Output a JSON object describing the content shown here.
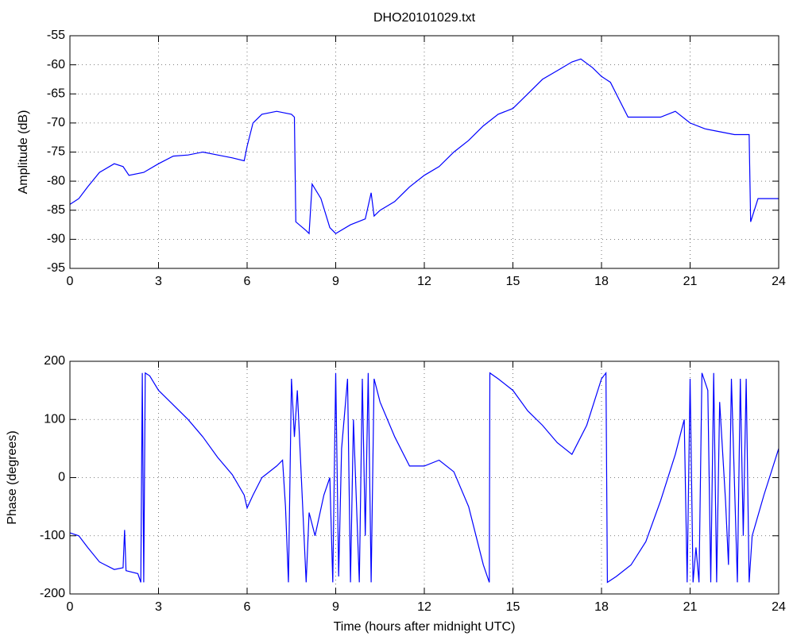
{
  "chart_data": [
    {
      "type": "line",
      "title": "DHO20101029.txt",
      "ylabel": "Amplitude (dB)",
      "x": [
        0,
        0.3,
        0.6,
        1,
        1.5,
        1.8,
        2,
        2.5,
        3,
        3.5,
        4,
        4.5,
        5,
        5.5,
        5.9,
        6,
        6.2,
        6.5,
        7,
        7.5,
        7.6,
        7.65,
        8,
        8.1,
        8.2,
        8.5,
        8.8,
        9,
        9.5,
        10,
        10.2,
        10.3,
        10.5,
        11,
        11.5,
        12,
        12.5,
        13,
        13.5,
        14,
        14.5,
        15,
        15.5,
        16,
        16.5,
        17,
        17.3,
        17.7,
        18,
        18.3,
        18.6,
        18.9,
        19.5,
        20,
        20.5,
        21,
        21.5,
        22,
        22.5,
        23,
        23.05,
        23.3,
        24
      ],
      "series": [
        {
          "name": "Amplitude",
          "color": "#0000ff",
          "values": [
            -84,
            -83,
            -81,
            -78.5,
            -77,
            -77.5,
            -79,
            -78.5,
            -77,
            -75.7,
            -75.5,
            -75,
            -75.5,
            -76,
            -76.5,
            -74,
            -70,
            -68.5,
            -68,
            -68.5,
            -69,
            -87,
            -88.5,
            -89,
            -80.5,
            -83,
            -88,
            -89,
            -87.5,
            -86.5,
            -82,
            -86,
            -85,
            -83.5,
            -81,
            -79,
            -77.5,
            -75,
            -73,
            -70.5,
            -68.5,
            -67.5,
            -65,
            -62.5,
            -61,
            -59.5,
            -59,
            -60.5,
            -62,
            -63,
            -66,
            -69,
            -69,
            -69,
            -68,
            -70,
            -71,
            -71.5,
            -72,
            -72,
            -87,
            -83,
            -83
          ]
        }
      ],
      "xlim": [
        0,
        24
      ],
      "xticks": [
        0,
        3,
        6,
        9,
        12,
        15,
        18,
        21,
        24
      ],
      "ylim": [
        -95,
        -55
      ],
      "yticks": [
        -95,
        -90,
        -85,
        -80,
        -75,
        -70,
        -65,
        -60,
        -55
      ],
      "grid": true
    },
    {
      "type": "line",
      "xlabel": "Time (hours after midnight UTC)",
      "ylabel": "Phase (degrees)",
      "x": [
        0,
        0.3,
        0.6,
        1,
        1.5,
        1.8,
        1.85,
        1.9,
        2.3,
        2.4,
        2.45,
        2.5,
        2.55,
        2.7,
        3,
        3.5,
        4,
        4.5,
        5,
        5.5,
        5.9,
        6,
        6.2,
        6.5,
        7,
        7.2,
        7.3,
        7.4,
        7.5,
        7.6,
        7.7,
        7.8,
        8,
        8.1,
        8.3,
        8.6,
        8.8,
        8.9,
        9,
        9.1,
        9.2,
        9.4,
        9.5,
        9.6,
        9.8,
        9.9,
        10,
        10.1,
        10.2,
        10.3,
        10.5,
        11,
        11.5,
        12,
        12.5,
        13,
        13.5,
        14,
        14.2,
        14.22,
        14.5,
        15,
        15.5,
        16,
        16.5,
        17,
        17.5,
        18,
        18.15,
        18.2,
        18.5,
        19,
        19.5,
        20,
        20.5,
        20.8,
        20.9,
        21,
        21.1,
        21.2,
        21.3,
        21.4,
        21.6,
        21.7,
        21.8,
        21.9,
        22,
        22.2,
        22.3,
        22.4,
        22.6,
        22.7,
        22.8,
        22.9,
        23,
        23.1,
        23.5,
        24
      ],
      "series": [
        {
          "name": "Phase",
          "color": "#0000ff",
          "values": [
            -95,
            -100,
            -120,
            -145,
            -158,
            -155,
            -90,
            -160,
            -165,
            -180,
            180,
            -180,
            180,
            175,
            150,
            125,
            100,
            70,
            35,
            5,
            -30,
            -52,
            -30,
            0,
            20,
            30,
            -50,
            -180,
            170,
            70,
            150,
            40,
            -180,
            -60,
            -100,
            -30,
            0,
            -180,
            180,
            -170,
            50,
            170,
            -180,
            100,
            -180,
            170,
            -100,
            180,
            -180,
            170,
            130,
            70,
            20,
            20,
            30,
            10,
            -50,
            -150,
            -180,
            180,
            170,
            150,
            115,
            90,
            60,
            40,
            90,
            170,
            180,
            -180,
            -170,
            -150,
            -110,
            -40,
            40,
            100,
            -180,
            170,
            -180,
            -120,
            -180,
            180,
            150,
            -180,
            180,
            -180,
            130,
            -40,
            -150,
            170,
            -180,
            170,
            -100,
            170,
            -180,
            -100,
            -30,
            50
          ]
        }
      ],
      "xlim": [
        0,
        24
      ],
      "xticks": [
        0,
        3,
        6,
        9,
        12,
        15,
        18,
        21,
        24
      ],
      "ylim": [
        -200,
        200
      ],
      "yticks": [
        -200,
        -100,
        0,
        100,
        200
      ],
      "grid": true
    }
  ]
}
